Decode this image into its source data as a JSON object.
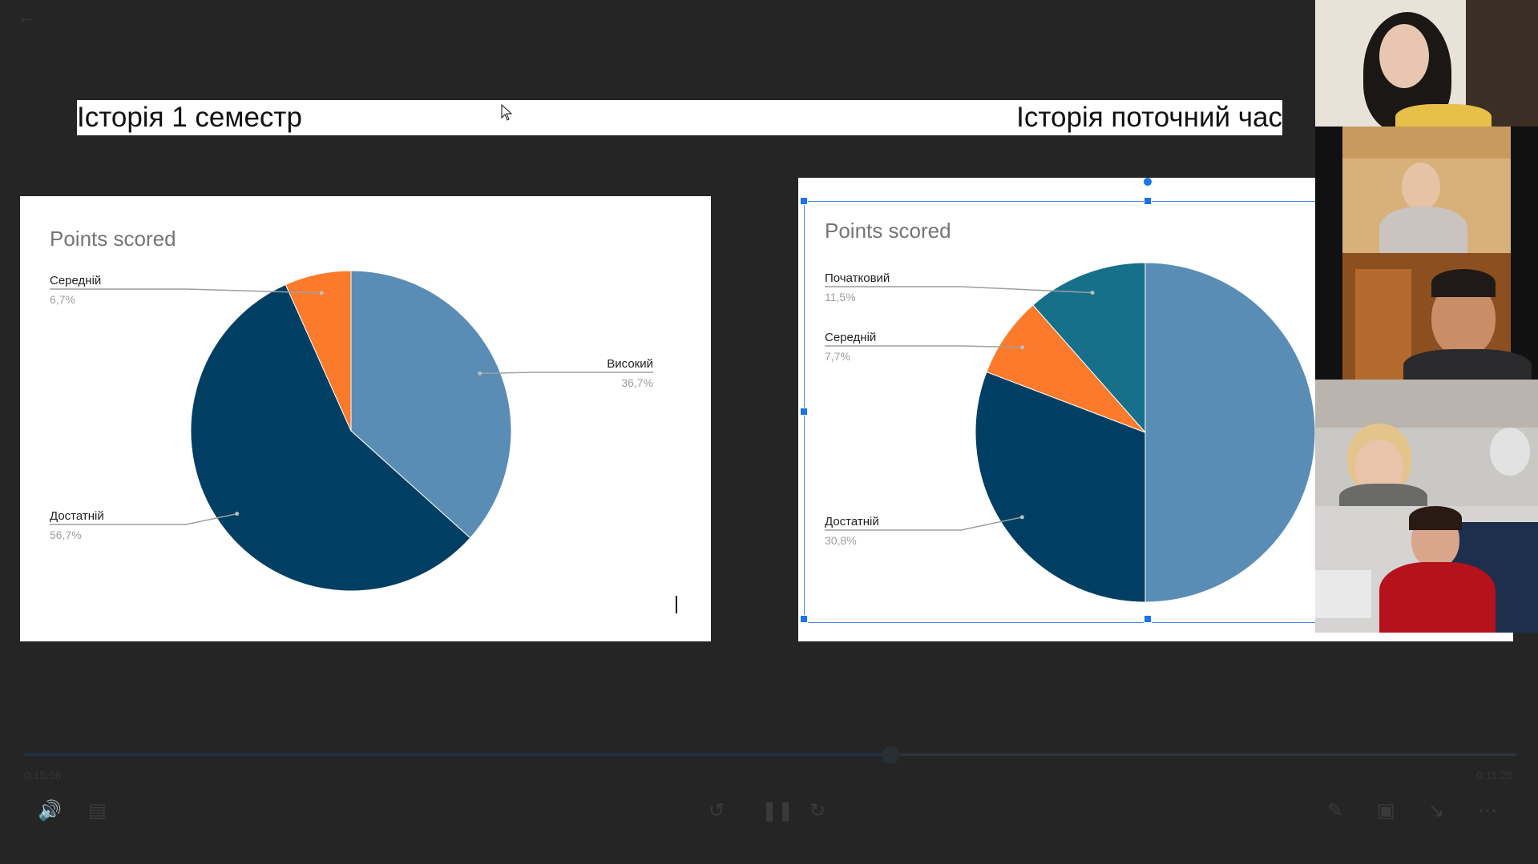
{
  "slide": {
    "title_left": "Історія 1 семестр",
    "title_right": "Історія поточний час"
  },
  "chart_data": [
    {
      "type": "pie",
      "title": "Points scored",
      "slices": [
        {
          "label": "Високий",
          "percent_label": "36,7%",
          "value": 36.7,
          "color": "#5a8db5"
        },
        {
          "label": "Достатній",
          "percent_label": "56,7%",
          "value": 56.7,
          "color": "#003f63"
        },
        {
          "label": "Середній",
          "percent_label": "6,7%",
          "value": 6.7,
          "color": "#fc7a2c"
        }
      ]
    },
    {
      "type": "pie",
      "title": "Points scored",
      "slices": [
        {
          "label": "",
          "percent_label": "",
          "value": 50.0,
          "color": "#5a8db5"
        },
        {
          "label": "Достатній",
          "percent_label": "30,8%",
          "value": 30.8,
          "color": "#003f63"
        },
        {
          "label": "Середній",
          "percent_label": "7,7%",
          "value": 7.7,
          "color": "#fc7a2c"
        },
        {
          "label": "Початковий",
          "percent_label": "11,5%",
          "value": 11.5,
          "color": "#16708a"
        }
      ]
    }
  ],
  "player": {
    "elapsed": "0:15:56",
    "remaining": "0:11:25",
    "progress": 0.58
  },
  "icons": {
    "back": "back-arrow-icon",
    "volume": "volume-icon",
    "captions": "captions-icon",
    "rewind": "rewind-10-icon",
    "pause": "pause-icon",
    "forward": "forward-30-icon",
    "pen": "pen-icon",
    "pip": "picture-in-picture-icon",
    "minimize": "minimize-icon",
    "more": "more-icon"
  },
  "participants": [
    {
      "id": "participant-1",
      "bg": "#e8e2d9",
      "accent": "#1b1714"
    },
    {
      "id": "participant-2",
      "bg": "#d8b07a",
      "accent": "#c9c4bf"
    },
    {
      "id": "participant-3",
      "bg": "#b46a2c",
      "accent": "#2a2a2d"
    },
    {
      "id": "participant-4",
      "bg": "#c9c8c4",
      "accent": "#e3c48a"
    },
    {
      "id": "participant-5",
      "bg": "#d5d4d2",
      "accent": "#b5121b"
    }
  ]
}
